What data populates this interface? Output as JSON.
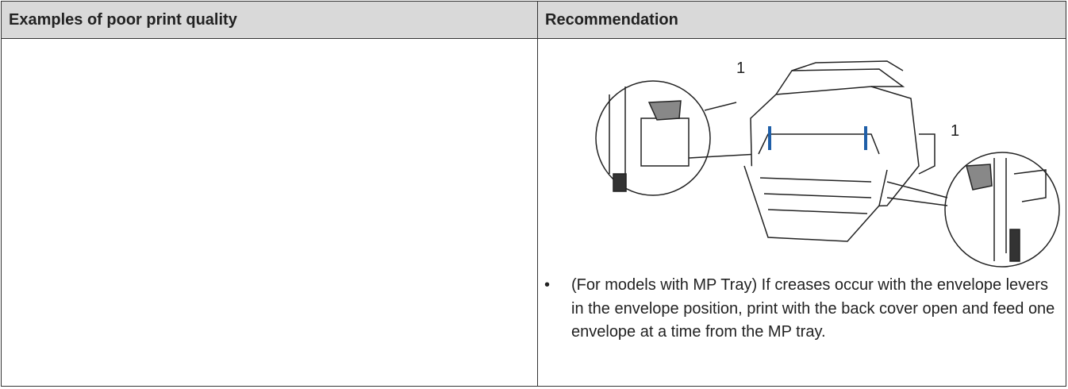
{
  "table": {
    "header": [
      "Examples of poor print quality",
      "Recommendation"
    ],
    "figure": {
      "callouts": [
        "1",
        "1"
      ]
    },
    "bullets": [
      "(For models with MP Tray) If creases occur with the envelope levers in the envelope position, print with the back cover open and feed one envelope at a time from the MP tray."
    ]
  }
}
